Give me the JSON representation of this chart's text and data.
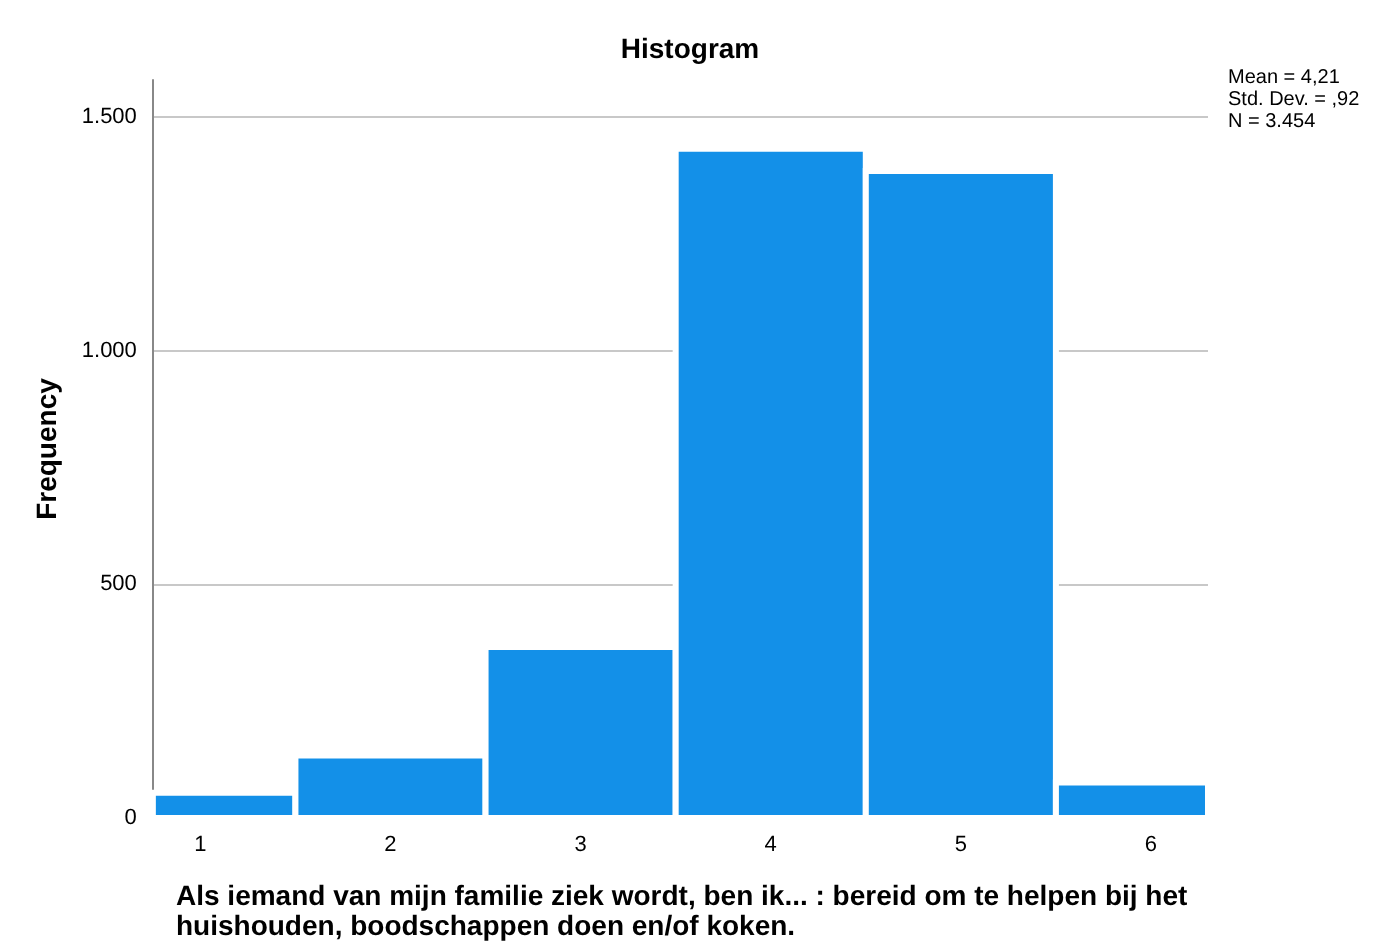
{
  "chart_data": {
    "type": "histogram",
    "title": "Histogram",
    "xlabel": "Als iemand van mijn familie ziek wordt, ben ik... : bereid om te helpen bij het huishouden, boodschappen doen en/of koken.",
    "ylabel": "Frequency",
    "bins": [
      0.75,
      1.5,
      2.5,
      3.5,
      4.5,
      5.5,
      6.3
    ],
    "values": [
      54,
      134,
      366,
      1433,
      1385,
      76
    ],
    "color": "#1390e8",
    "xlim": [
      0.75,
      6.3
    ],
    "xticks": [
      1,
      2,
      3,
      4,
      5,
      6
    ],
    "ylim": [
      0,
      1580
    ],
    "yticks": [
      0,
      500,
      {
        "value": 1000,
        "label": "1.000"
      },
      {
        "value": 1500,
        "label": "1.500"
      }
    ],
    "grid": "y",
    "annotations": [
      "Mean = 4,21",
      "Std. Dev. = ,92",
      "N = 3.454"
    ]
  }
}
